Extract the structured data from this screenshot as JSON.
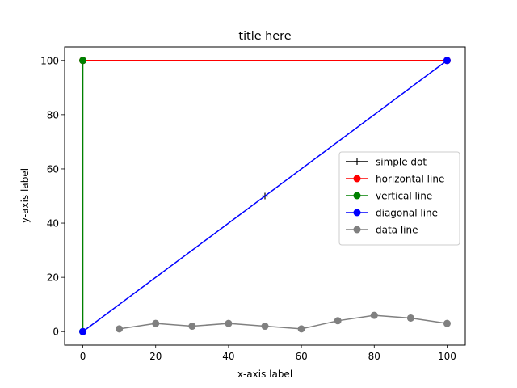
{
  "chart_data": {
    "type": "line",
    "title": "title here",
    "xlabel": "x-axis label",
    "ylabel": "y-axis label",
    "xlim": [
      -5,
      105
    ],
    "ylim": [
      -5,
      105
    ],
    "xticks": [
      0,
      20,
      40,
      60,
      80,
      100
    ],
    "yticks": [
      0,
      20,
      40,
      60,
      80,
      100
    ],
    "grid": false,
    "legend_position": "center-right",
    "series": [
      {
        "name": "simple dot",
        "color": "#000000",
        "marker": "plus",
        "line": false,
        "points": [
          [
            50,
            50
          ]
        ]
      },
      {
        "name": "horizontal line",
        "color": "#ff0000",
        "marker": "circle",
        "line": true,
        "points": [
          [
            0,
            100
          ],
          [
            100,
            100
          ]
        ]
      },
      {
        "name": "vertical line",
        "color": "#008000",
        "marker": "circle",
        "line": true,
        "points": [
          [
            0,
            0
          ],
          [
            0,
            100
          ]
        ]
      },
      {
        "name": "diagonal line",
        "color": "#0000ff",
        "marker": "circle",
        "line": true,
        "points": [
          [
            0,
            0
          ],
          [
            100,
            100
          ]
        ]
      },
      {
        "name": "data line",
        "color": "#808080",
        "marker": "circle",
        "line": true,
        "points": [
          [
            10,
            1
          ],
          [
            20,
            3
          ],
          [
            30,
            2
          ],
          [
            40,
            3
          ],
          [
            50,
            2
          ],
          [
            60,
            1
          ],
          [
            70,
            4
          ],
          [
            80,
            6
          ],
          [
            90,
            5
          ],
          [
            100,
            3
          ]
        ]
      }
    ]
  }
}
